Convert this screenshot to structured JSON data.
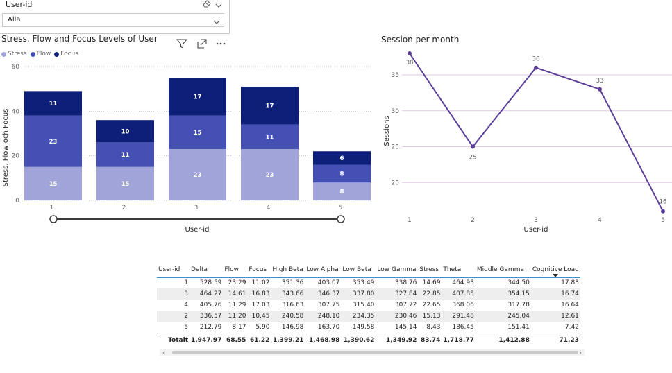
{
  "slicer": {
    "title": "User-id",
    "selected": "Alla",
    "eraser_icon": "eraser-icon",
    "chevron_icon": "chevron-down-icon"
  },
  "bar_visual": {
    "title": "Stress, Flow and Focus Levels of User",
    "icons": [
      "filter-icon",
      "focus-mode-icon",
      "more-options-icon"
    ],
    "legend": [
      {
        "name": "Stress",
        "color": "#a0a4d8"
      },
      {
        "name": "Flow",
        "color": "#4450b4"
      },
      {
        "name": "Focus",
        "color": "#0d1f78"
      }
    ],
    "range_slider_icon": "range-slider"
  },
  "line_visual": {
    "title": "Session per month",
    "line_color": "#5c3d99"
  },
  "chart_data": [
    {
      "type": "bar",
      "stacked": true,
      "title": "Stress, Flow and Focus Levels of User",
      "xlabel": "User-id",
      "ylabel": "Stress, Flow och Focus",
      "categories": [
        "1",
        "2",
        "3",
        "4",
        "5"
      ],
      "series": [
        {
          "name": "Stress",
          "values": [
            15,
            15,
            23,
            23,
            8
          ]
        },
        {
          "name": "Flow",
          "values": [
            23,
            11,
            15,
            11,
            8
          ]
        },
        {
          "name": "Focus",
          "values": [
            11,
            10,
            17,
            17,
            6
          ]
        }
      ],
      "ylim": [
        0,
        60
      ],
      "yticks": [
        0,
        20,
        40,
        60
      ],
      "legend_position": "top-left",
      "grid": true
    },
    {
      "type": "line",
      "title": "Session per month",
      "xlabel": "User-id",
      "ylabel": "Sessions",
      "x": [
        "1",
        "2",
        "3",
        "4",
        "5"
      ],
      "series": [
        {
          "values": [
            38,
            25,
            36,
            33,
            16
          ]
        }
      ],
      "ylim": [
        15,
        38
      ],
      "yticks": [
        20,
        25,
        30,
        35
      ],
      "grid": true
    }
  ],
  "table": {
    "columns": [
      "User-id",
      "Delta",
      "Flow",
      "Focus",
      "High Beta",
      "Low Alpha",
      "Low Beta",
      "Low Gamma",
      "Stress",
      "Theta",
      "Middle Gamma",
      "Cognitive Load"
    ],
    "sorted_column": "Cognitive Load",
    "rows": [
      [
        "1",
        "528.59",
        "23.29",
        "11.02",
        "351.36",
        "403.07",
        "353.49",
        "338.76",
        "14.69",
        "464.93",
        "344.50",
        "17.83"
      ],
      [
        "3",
        "464.27",
        "14.61",
        "16.83",
        "343.66",
        "346.37",
        "337.80",
        "327.84",
        "22.85",
        "407.85",
        "354.15",
        "16.74"
      ],
      [
        "4",
        "405.76",
        "11.29",
        "17.03",
        "316.63",
        "307.75",
        "315.40",
        "307.72",
        "22.65",
        "368.06",
        "317.78",
        "16.64"
      ],
      [
        "2",
        "336.57",
        "11.20",
        "10.45",
        "240.58",
        "248.10",
        "234.35",
        "230.46",
        "15.13",
        "291.48",
        "245.04",
        "12.61"
      ],
      [
        "5",
        "212.79",
        "8.17",
        "5.90",
        "146.98",
        "163.70",
        "149.58",
        "145.14",
        "8.43",
        "186.45",
        "151.41",
        "7.42"
      ]
    ],
    "total": [
      "Totalt",
      "1,947.97",
      "68.55",
      "61.22",
      "1,399.21",
      "1,468.98",
      "1,390.62",
      "1,349.92",
      "83.74",
      "1,718.77",
      "1,412.88",
      "71.23"
    ],
    "scroll_left": "‹",
    "scroll_right": "›"
  }
}
